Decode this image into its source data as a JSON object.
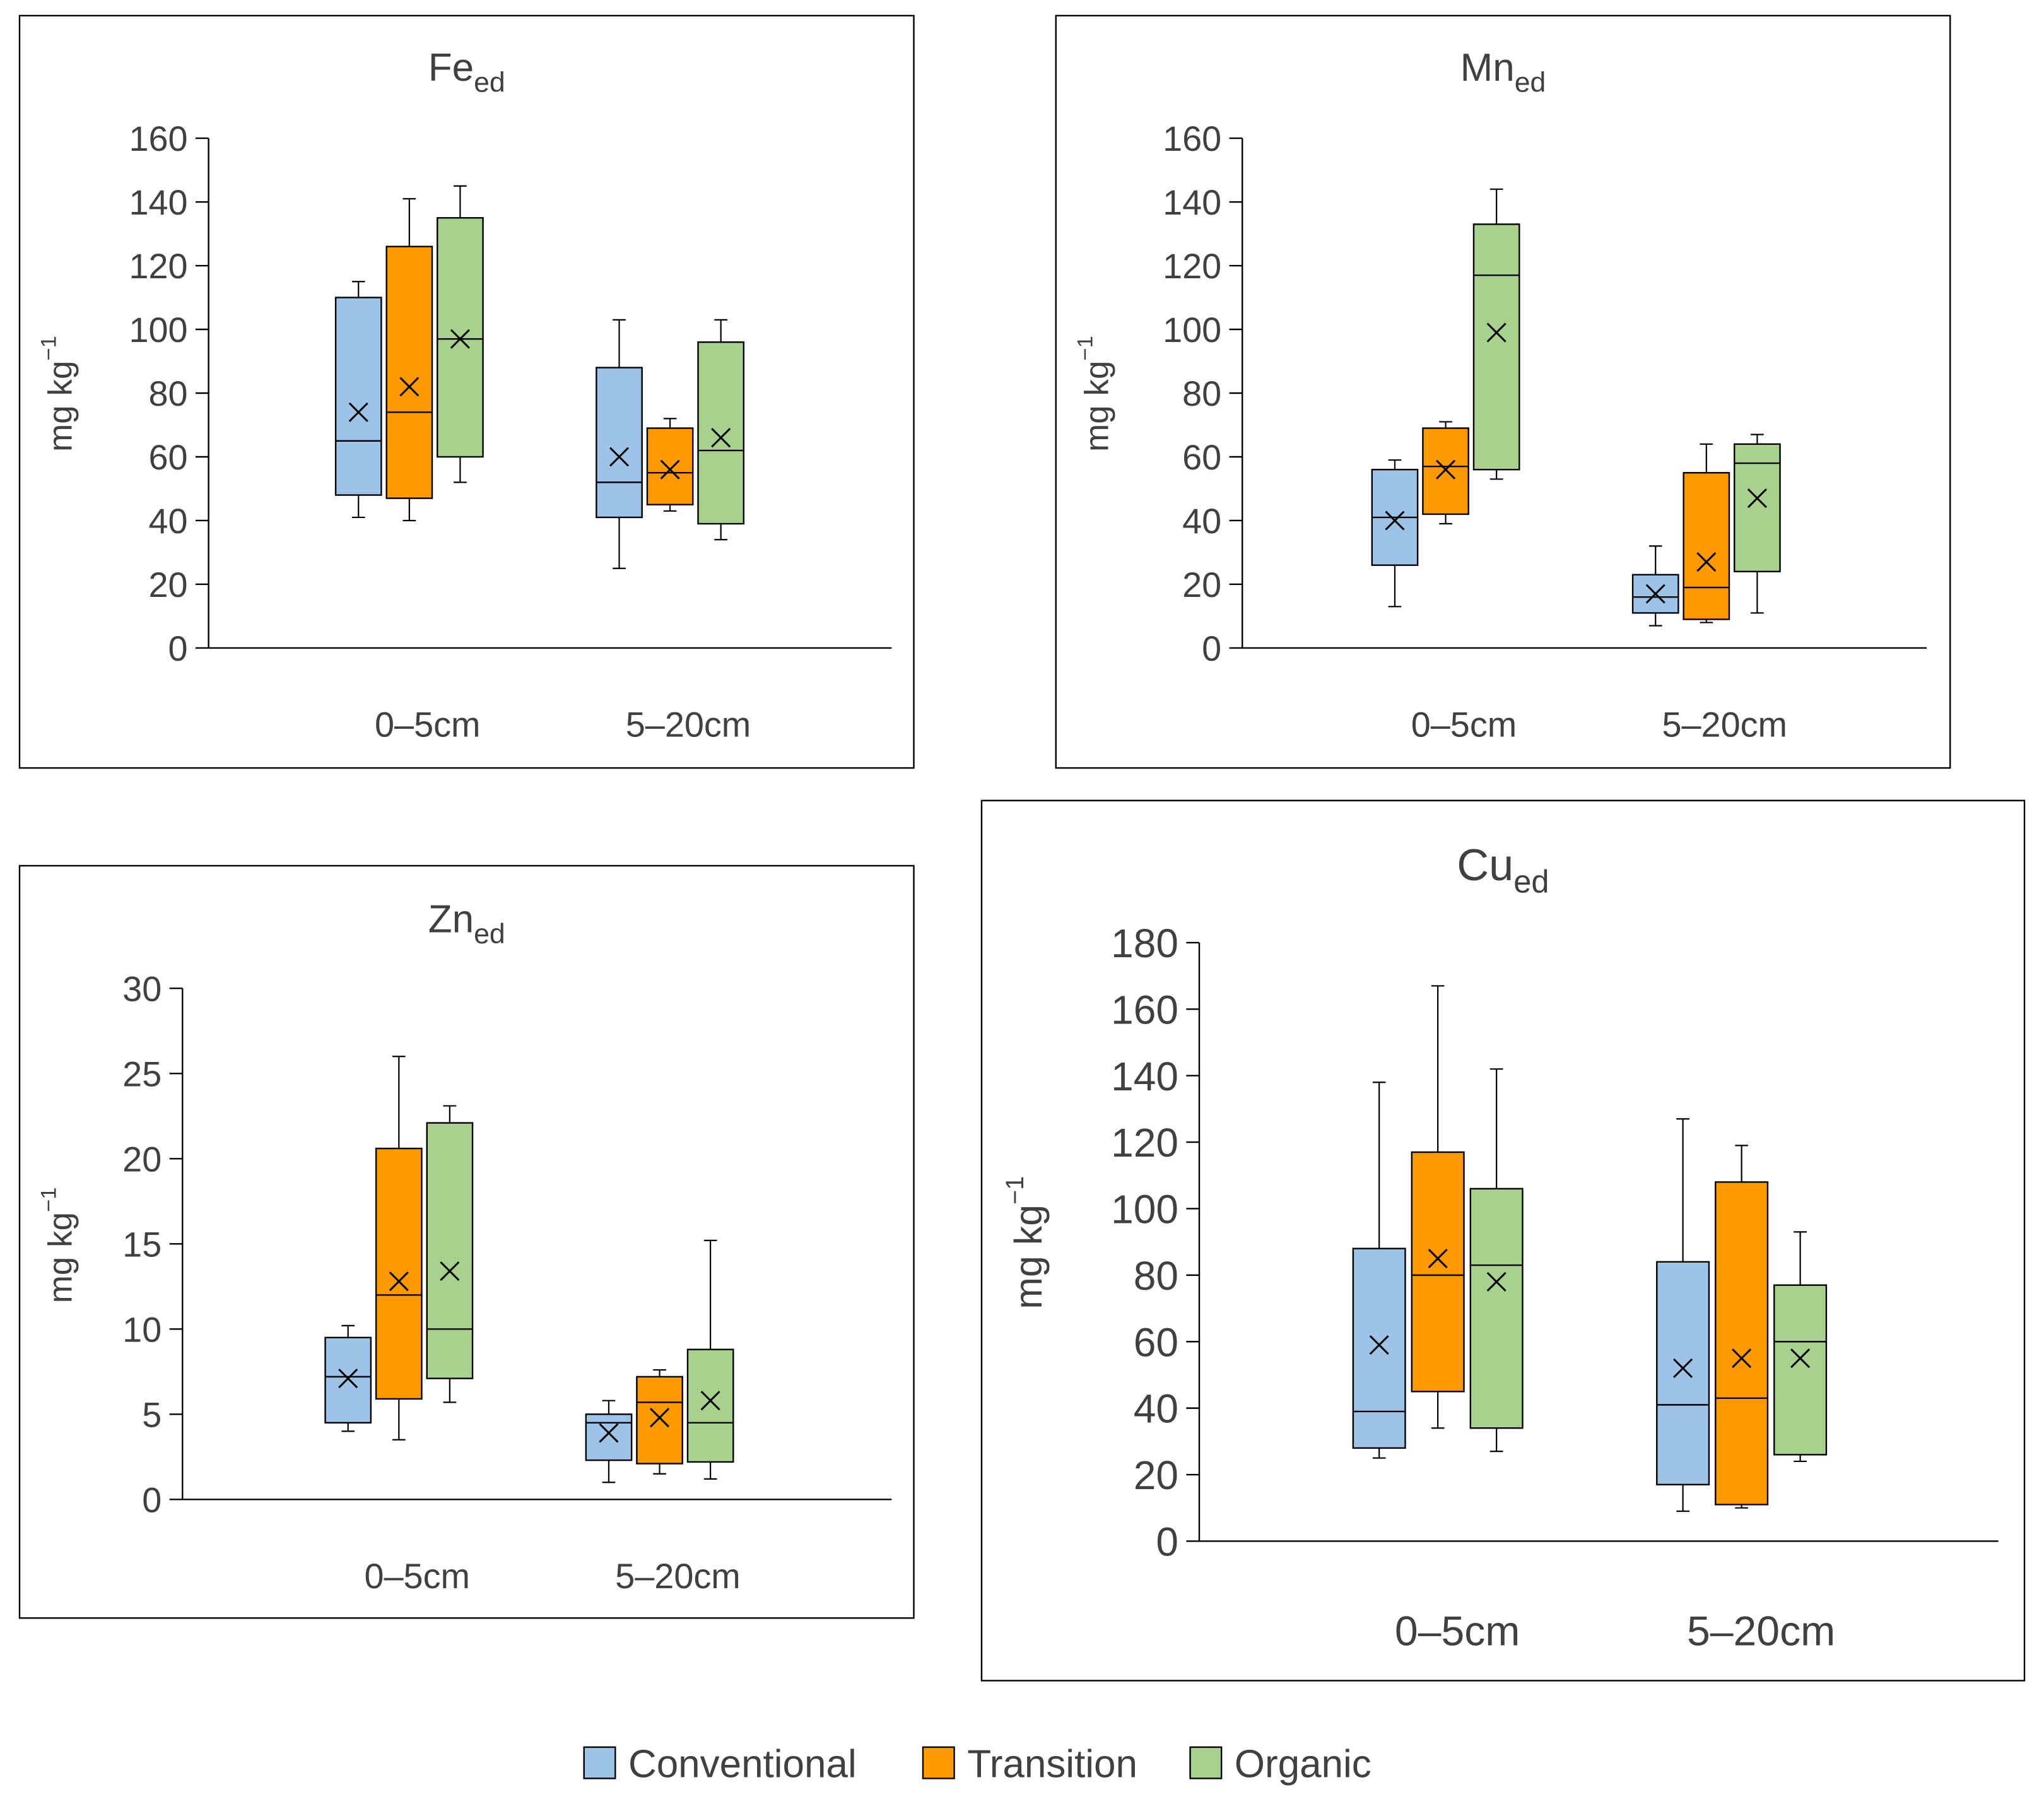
{
  "figure": {
    "legend": [
      {
        "label": "Conventional",
        "color": "#9dc3e6"
      },
      {
        "label": "Transition",
        "color": "#ff9900"
      },
      {
        "label": "Organic",
        "color": "#a9d18e"
      }
    ]
  },
  "chart_data": [
    {
      "type": "box",
      "title": "Fe",
      "title_sub": "ed",
      "ylabel": "mg kg",
      "ylabel_sup": "−1",
      "ylim": [
        0,
        160
      ],
      "yticks": [
        0,
        20,
        40,
        60,
        80,
        100,
        120,
        140,
        160
      ],
      "categories": [
        "0–5cm",
        "5–20cm"
      ],
      "series": [
        {
          "name": "Conventional",
          "boxes": [
            {
              "min": 41,
              "q1": 48,
              "median": 65,
              "q3": 110,
              "max": 115,
              "mean": 74
            },
            {
              "min": 25,
              "q1": 41,
              "median": 52,
              "q3": 88,
              "max": 103,
              "mean": 60
            }
          ]
        },
        {
          "name": "Transition",
          "boxes": [
            {
              "min": 40,
              "q1": 47,
              "median": 74,
              "q3": 126,
              "max": 141,
              "mean": 82
            },
            {
              "min": 43,
              "q1": 45,
              "median": 55,
              "q3": 69,
              "max": 72,
              "mean": 56
            }
          ]
        },
        {
          "name": "Organic",
          "boxes": [
            {
              "min": 52,
              "q1": 60,
              "median": 97,
              "q3": 135,
              "max": 145,
              "mean": 97
            },
            {
              "min": 34,
              "q1": 39,
              "median": 62,
              "q3": 96,
              "max": 103,
              "mean": 66
            }
          ]
        }
      ]
    },
    {
      "type": "box",
      "title": "Mn",
      "title_sub": "ed",
      "ylabel": "mg kg",
      "ylabel_sup": "−1",
      "ylim": [
        0,
        160
      ],
      "yticks": [
        0,
        20,
        40,
        60,
        80,
        100,
        120,
        140,
        160
      ],
      "categories": [
        "0–5cm",
        "5–20cm"
      ],
      "series": [
        {
          "name": "Conventional",
          "boxes": [
            {
              "min": 13,
              "q1": 26,
              "median": 41,
              "q3": 56,
              "max": 59,
              "mean": 40
            },
            {
              "min": 7,
              "q1": 11,
              "median": 16,
              "q3": 23,
              "max": 32,
              "mean": 17
            }
          ]
        },
        {
          "name": "Transition",
          "boxes": [
            {
              "min": 39,
              "q1": 42,
              "median": 57,
              "q3": 69,
              "max": 71,
              "mean": 56
            },
            {
              "min": 8,
              "q1": 9,
              "median": 19,
              "q3": 55,
              "max": 64,
              "mean": 27
            }
          ]
        },
        {
          "name": "Organic",
          "boxes": [
            {
              "min": 53,
              "q1": 56,
              "median": 117,
              "q3": 133,
              "max": 144,
              "mean": 99
            },
            {
              "min": 11,
              "q1": 24,
              "median": 58,
              "q3": 64,
              "max": 67,
              "mean": 47
            }
          ]
        }
      ]
    },
    {
      "type": "box",
      "title": "Zn",
      "title_sub": "ed",
      "ylabel": "mg kg",
      "ylabel_sup": "−1",
      "ylim": [
        0,
        30
      ],
      "yticks": [
        0,
        5,
        10,
        15,
        20,
        25,
        30
      ],
      "categories": [
        "0–5cm",
        "5–20cm"
      ],
      "series": [
        {
          "name": "Conventional",
          "boxes": [
            {
              "min": 4.0,
              "q1": 4.5,
              "median": 7.2,
              "q3": 9.5,
              "max": 10.2,
              "mean": 7.1
            },
            {
              "min": 1.0,
              "q1": 2.3,
              "median": 4.5,
              "q3": 5.0,
              "max": 5.8,
              "mean": 3.9
            }
          ]
        },
        {
          "name": "Transition",
          "boxes": [
            {
              "min": 3.5,
              "q1": 5.9,
              "median": 12.0,
              "q3": 20.6,
              "max": 26.0,
              "mean": 12.8
            },
            {
              "min": 1.5,
              "q1": 2.1,
              "median": 5.7,
              "q3": 7.2,
              "max": 7.6,
              "mean": 4.8
            }
          ]
        },
        {
          "name": "Organic",
          "boxes": [
            {
              "min": 5.7,
              "q1": 7.1,
              "median": 10.0,
              "q3": 22.1,
              "max": 23.1,
              "mean": 13.4
            },
            {
              "min": 1.2,
              "q1": 2.2,
              "median": 4.5,
              "q3": 8.8,
              "max": 15.2,
              "mean": 5.8
            }
          ]
        }
      ]
    },
    {
      "type": "box",
      "title": "Cu",
      "title_sub": "ed",
      "ylabel": "mg kg",
      "ylabel_sup": "−1",
      "ylim": [
        0,
        180
      ],
      "yticks": [
        0,
        20,
        40,
        60,
        80,
        100,
        120,
        140,
        160,
        180
      ],
      "categories": [
        "0–5cm",
        "5–20cm"
      ],
      "series": [
        {
          "name": "Conventional",
          "boxes": [
            {
              "min": 25,
              "q1": 28,
              "median": 39,
              "q3": 88,
              "max": 138,
              "mean": 59
            },
            {
              "min": 9,
              "q1": 17,
              "median": 41,
              "q3": 84,
              "max": 127,
              "mean": 52
            }
          ]
        },
        {
          "name": "Transition",
          "boxes": [
            {
              "min": 34,
              "q1": 45,
              "median": 80,
              "q3": 117,
              "max": 167,
              "mean": 85
            },
            {
              "min": 10,
              "q1": 11,
              "median": 43,
              "q3": 108,
              "max": 119,
              "mean": 55
            }
          ]
        },
        {
          "name": "Organic",
          "boxes": [
            {
              "min": 27,
              "q1": 34,
              "median": 83,
              "q3": 106,
              "max": 142,
              "mean": 78
            },
            {
              "min": 24,
              "q1": 26,
              "median": 60,
              "q3": 77,
              "max": 93,
              "mean": 55
            }
          ]
        }
      ]
    }
  ]
}
